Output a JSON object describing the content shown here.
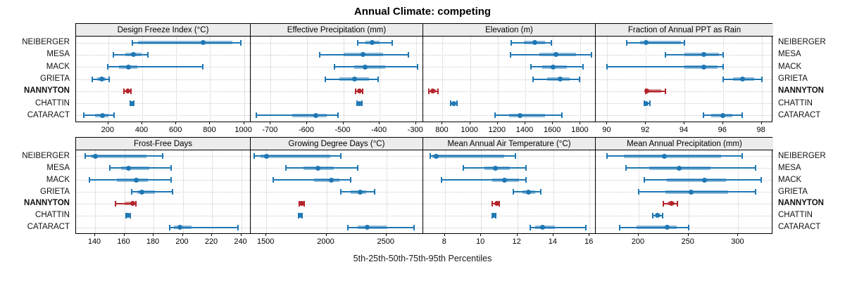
{
  "title": "Annual Climate: competing",
  "xlabel": "5th-25th-50th-75th-95th Percentiles",
  "colors": {
    "series": "#1f77b4",
    "highlight": "#b3242a",
    "strip_bg": "#ececec",
    "grid": "#c9c9c9",
    "border": "#000000"
  },
  "stations": [
    {
      "name": "NEIBERGER",
      "bold": false
    },
    {
      "name": "MESA",
      "bold": false
    },
    {
      "name": "MACK",
      "bold": false
    },
    {
      "name": "GRIETA",
      "bold": false
    },
    {
      "name": "NANNYTON",
      "bold": true
    },
    {
      "name": "CHATTIN",
      "bold": false
    },
    {
      "name": "CATARACT",
      "bold": false
    }
  ],
  "highlight_station": "NANNYTON",
  "chart_data": [
    {
      "type": "dotplot",
      "title": "Design Freeze Index (°C)",
      "percentiles": [
        5,
        25,
        50,
        75,
        95
      ],
      "domain": [
        10,
        1035
      ],
      "ticks": [
        200,
        400,
        600,
        800,
        1000
      ],
      "values": [
        [
          340,
          375,
          760,
          930,
          980
        ],
        [
          230,
          300,
          350,
          395,
          435
        ],
        [
          195,
          265,
          320,
          370,
          755
        ],
        [
          105,
          135,
          160,
          185,
          205
        ],
        [
          290,
          305,
          315,
          325,
          332
        ],
        [
          328,
          335,
          340,
          345,
          350
        ],
        [
          55,
          120,
          165,
          200,
          235
        ]
      ]
    },
    {
      "type": "dotplot",
      "title": "Effective Precipitation (mm)",
      "percentiles": [
        5,
        25,
        50,
        75,
        95
      ],
      "domain": [
        -755,
        -282
      ],
      "ticks": [
        -700,
        -600,
        -500,
        -400,
        -300
      ],
      "values": [
        [
          -460,
          -440,
          -420,
          -400,
          -365
        ],
        [
          -565,
          -500,
          -445,
          -390,
          -320
        ],
        [
          -525,
          -470,
          -440,
          -385,
          -295
        ],
        [
          -550,
          -510,
          -470,
          -430,
          -405
        ],
        [
          -466,
          -460,
          -455,
          -451,
          -447
        ],
        [
          -462,
          -458,
          -455,
          -451,
          -448
        ],
        [
          -740,
          -640,
          -575,
          -545,
          -515
        ]
      ]
    },
    {
      "type": "dotplot",
      "title": "Elevation (m)",
      "percentiles": [
        5,
        25,
        50,
        75,
        95
      ],
      "domain": [
        660,
        1905
      ],
      "ticks": [
        800,
        1000,
        1200,
        1400,
        1600,
        1800
      ],
      "values": [
        [
          1300,
          1390,
          1470,
          1545,
          1590
        ],
        [
          1295,
          1500,
          1620,
          1770,
          1880
        ],
        [
          1440,
          1520,
          1600,
          1700,
          1820
        ],
        [
          1455,
          1560,
          1650,
          1720,
          1795
        ],
        [
          700,
          715,
          730,
          750,
          765
        ],
        [
          858,
          870,
          880,
          892,
          905
        ],
        [
          1180,
          1280,
          1360,
          1540,
          1665
        ]
      ]
    },
    {
      "type": "dotplot",
      "title": "Fraction of Annual PPT as Rain",
      "percentiles": [
        5,
        25,
        50,
        75,
        95
      ],
      "domain": [
        89.4,
        98.6
      ],
      "ticks": [
        90,
        92,
        94,
        96,
        98
      ],
      "values": [
        [
          91,
          91.7,
          92,
          93.8,
          94
        ],
        [
          93,
          94,
          95,
          95.8,
          96
        ],
        [
          90,
          94,
          95,
          95.7,
          96
        ],
        [
          96,
          96.5,
          97,
          97.6,
          98
        ],
        [
          92,
          92,
          92.05,
          92.8,
          93
        ],
        [
          91.9,
          92,
          92,
          92.1,
          92.2
        ],
        [
          95,
          95.4,
          96,
          96.5,
          97
        ]
      ]
    },
    {
      "type": "dotplot",
      "title": "Frost-Free Days",
      "percentiles": [
        5,
        25,
        50,
        75,
        95
      ],
      "domain": [
        127,
        246
      ],
      "ticks": [
        140,
        160,
        180,
        200,
        220,
        240
      ],
      "values": [
        [
          133,
          137,
          140,
          175,
          186
        ],
        [
          150,
          158,
          163,
          177,
          192
        ],
        [
          136,
          155,
          168,
          176,
          192
        ],
        [
          165,
          169,
          172,
          181,
          193
        ],
        [
          154,
          160,
          166,
          167,
          168
        ],
        [
          161,
          162,
          162.5,
          163,
          164
        ],
        [
          191,
          194,
          198,
          206,
          238
        ]
      ]
    },
    {
      "type": "dotplot",
      "title": "Growing Degree Days (°C)",
      "percentiles": [
        5,
        25,
        50,
        75,
        95
      ],
      "domain": [
        1370,
        2800
      ],
      "ticks": [
        1500,
        2000,
        2500
      ],
      "values": [
        [
          1400,
          1450,
          1500,
          2030,
          2120
        ],
        [
          1660,
          1810,
          1930,
          2060,
          2260
        ],
        [
          1560,
          1900,
          2040,
          2110,
          2200
        ],
        [
          2120,
          2200,
          2280,
          2330,
          2400
        ],
        [
          1772,
          1783,
          1793,
          1803,
          1813
        ],
        [
          1770,
          1778,
          1784,
          1790,
          1796
        ],
        [
          2180,
          2260,
          2340,
          2500,
          2730
        ]
      ]
    },
    {
      "type": "dotplot",
      "title": "Mean Annual Air Temperature (°C)",
      "percentiles": [
        5,
        25,
        50,
        75,
        95
      ],
      "domain": [
        6.8,
        16.3
      ],
      "ticks": [
        8,
        10,
        12,
        14,
        16
      ],
      "values": [
        [
          7.2,
          7.3,
          7.5,
          11.3,
          11.9
        ],
        [
          9.0,
          10.2,
          10.8,
          11.6,
          12.5
        ],
        [
          7.8,
          10.6,
          11.3,
          12.1,
          12.5
        ],
        [
          11.8,
          12.3,
          12.6,
          13.0,
          13.3
        ],
        [
          10.6,
          10.75,
          10.85,
          10.95,
          11.0
        ],
        [
          10.6,
          10.65,
          10.7,
          10.75,
          10.8
        ],
        [
          12.7,
          13.0,
          13.4,
          14.1,
          15.8
        ]
      ]
    },
    {
      "type": "dotplot",
      "title": "Mean Annual Precipitation (mm)",
      "percentiles": [
        5,
        25,
        50,
        75,
        95
      ],
      "domain": [
        157,
        335
      ],
      "ticks": [
        200,
        250,
        300
      ],
      "values": [
        [
          168,
          185,
          226,
          283,
          304
        ],
        [
          187,
          211,
          241,
          272,
          317
        ],
        [
          206,
          228,
          266,
          288,
          323
        ],
        [
          200,
          227,
          253,
          290,
          317
        ],
        [
          225,
          229,
          233,
          236,
          239
        ],
        [
          214,
          217,
          219,
          222,
          224
        ],
        [
          181,
          198,
          229,
          238,
          250
        ]
      ]
    }
  ]
}
